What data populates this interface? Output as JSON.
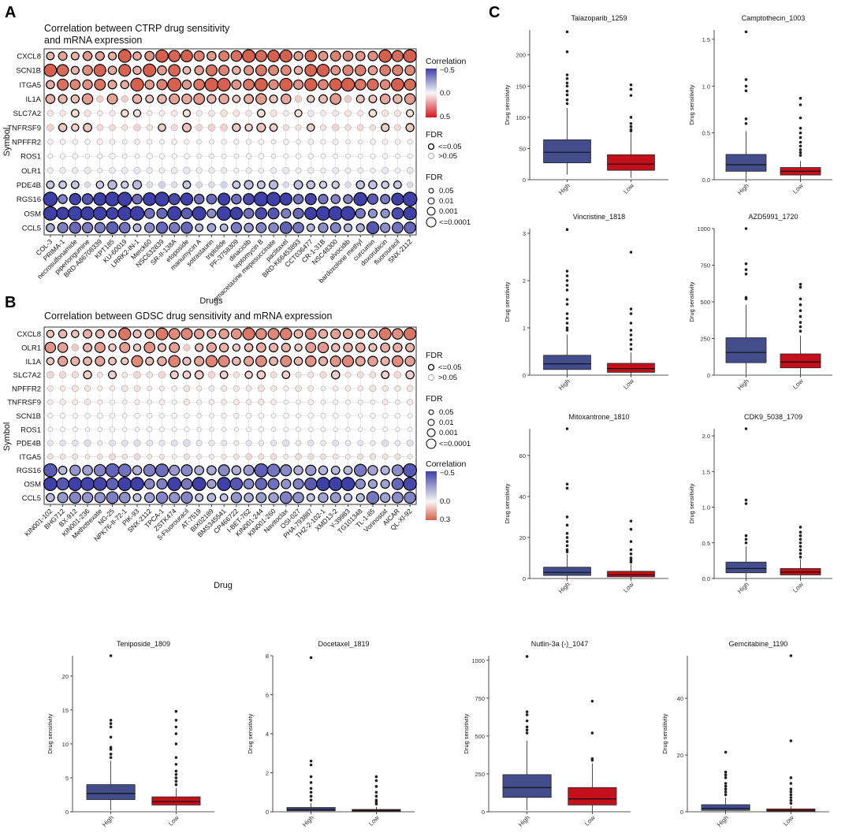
{
  "figure": {
    "panel_labels": {
      "A": "A",
      "B": "B",
      "C": "C"
    },
    "panel_a": {
      "title_line1": "Correlation between CTRP drug sensitivity",
      "title_line2": "and mRNA expression",
      "xlabel": "Drugs",
      "ylabel": "Symbol",
      "legend_corr_title": "Correlation",
      "legend_corr_ticks": [
        "−0.5",
        "0.0",
        "0.5"
      ],
      "legend_fdr_title": "FDR",
      "legend_fdr_items": [
        "<=0.05",
        ">0.05"
      ],
      "legend_size_title": "FDR",
      "legend_size_items": [
        "0.05",
        "0.01",
        "0.001",
        "<=0.0001"
      ]
    },
    "panel_b": {
      "title": "Correlation between GDSC drug sensitivity and mRNA expression",
      "xlabel": "Drug",
      "ylabel": "Symbol",
      "legend_fdr_title": "FDR",
      "legend_fdr_items": [
        "<=0.05",
        ">0.05"
      ],
      "legend_size_title": "FDR",
      "legend_size_items": [
        "0.05",
        "0.01",
        "0.001",
        "<=0.0001"
      ],
      "legend_corr_title": "Correlation",
      "legend_corr_ticks": [
        "−0.5",
        "0.0",
        "0.3"
      ]
    },
    "colors": {
      "high_box": "#434D8C",
      "low_box": "#C4101A",
      "neg_corr": "#3F3FA8",
      "pos_corr": "#D6604D",
      "neutral": "#F7F7F7",
      "grid": "#D9D9D9"
    }
  },
  "chart_data": [
    {
      "type": "bubble",
      "panel": "A",
      "rows": [
        "CXCL8",
        "SCN1B",
        "ITGA5",
        "IL1A",
        "SLC7A2",
        "TNFRSF9",
        "NPFFR2",
        "ROS1",
        "OLR1",
        "PDE4B",
        "RGS16",
        "OSM",
        "CCL5"
      ],
      "columns": [
        "COL-3",
        "PRIMA-1",
        "necrosulfonamide",
        "piperlongumine",
        "BRD-A86708339",
        "KPT185",
        "KU-60019",
        "LRRK2-IN-1",
        "Merck60",
        "NSC632839",
        "SR-II-138A",
        "etoposide",
        "manumycin A",
        "sotrastaurin",
        "triptolide",
        "PF-3758309",
        "dinaciclib",
        "leptomycin B",
        "omacetaxine mepesuccinate",
        "paclitaxel",
        "BRD-K66453893",
        "CCT036477",
        "CR-1-31B",
        "NSC48300",
        "alvocidib",
        "bardoxolone methyl",
        "curcumin",
        "doxorubicin",
        "fluorouracil",
        "SNX-2112"
      ],
      "row_mean_correlation": [
        0.4,
        0.38,
        0.42,
        0.22,
        0.06,
        0.12,
        0.02,
        0.01,
        -0.03,
        -0.12,
        -0.55,
        -0.48,
        -0.3
      ],
      "row_mean_size": [
        3,
        3,
        3.2,
        2.4,
        1.4,
        1.7,
        0.8,
        0.9,
        1.2,
        1.8,
        3.8,
        3.6,
        2.8
      ],
      "color_range": [
        -0.5,
        0.5
      ]
    },
    {
      "type": "bubble",
      "panel": "B",
      "rows": [
        "CXCL8",
        "OLR1",
        "IL1A",
        "SLC7A2",
        "NPFFR2",
        "TNFRSF9",
        "SCN1B",
        "ROS1",
        "PDE4B",
        "ITGA5",
        "RGS16",
        "OSM",
        "CCL5"
      ],
      "columns": [
        "KIN001-102",
        "BHG712",
        "BX-912",
        "KIN001-236",
        "Methotrexate",
        "NG-25",
        "NPK76-II-72-1",
        "PIK-93",
        "SNX-2112",
        "TPCA-1",
        "ZSTK474",
        "5-Fluorouracil",
        "AT-7519",
        "BIX02189",
        "BMS345541",
        "CP466722",
        "I-BET-762",
        "KIN001-244",
        "KIN001-260",
        "Navitoclax",
        "OSI-027",
        "PHA-793887",
        "THZ-2-102-1",
        "XMD13-2",
        "Y-39983",
        "TG101348",
        "TL-1-85",
        "Vorinostat",
        "AICAR",
        "QL-XI-92"
      ],
      "row_mean_correlation": [
        0.18,
        0.14,
        0.16,
        0.06,
        0.03,
        0.02,
        0.0,
        0.0,
        -0.05,
        0.04,
        -0.3,
        -0.4,
        -0.24
      ],
      "row_mean_size": [
        2.8,
        2.4,
        2.6,
        1.6,
        1.1,
        0.9,
        0.8,
        0.7,
        1.2,
        1.0,
        3.4,
        3.6,
        2.8
      ],
      "color_range": [
        -0.5,
        0.3
      ]
    },
    {
      "type": "boxplot",
      "title": "Talazoparib_1259",
      "ylabel": "Drug sensitivity",
      "categories": [
        "High",
        "Low"
      ],
      "ylim": [
        0,
        240
      ],
      "yticks": [
        0,
        50,
        100,
        150,
        200
      ],
      "high": {
        "q1": 27,
        "median": 44,
        "q3": 64,
        "min": 8,
        "max": 115,
        "outliers": [
          237,
          205,
          168,
          162,
          155,
          150,
          142,
          136,
          128,
          122
        ]
      },
      "low": {
        "q1": 15,
        "median": 25,
        "q3": 40,
        "min": 3,
        "max": 75,
        "outliers": [
          152,
          145,
          135,
          100,
          90,
          85,
          80,
          78
        ]
      }
    },
    {
      "type": "boxplot",
      "title": "Camptothecin_1003",
      "ylabel": "Drug sensitivity",
      "categories": [
        "High",
        "Low"
      ],
      "ylim": [
        0,
        1.6
      ],
      "yticks": [
        0.0,
        0.5,
        1.0,
        1.5
      ],
      "high": {
        "q1": 0.09,
        "median": 0.16,
        "q3": 0.27,
        "min": 0.01,
        "max": 0.52,
        "outliers": [
          1.58,
          1.07,
          1.0,
          0.95,
          0.65,
          0.6
        ]
      },
      "low": {
        "q1": 0.05,
        "median": 0.09,
        "q3": 0.13,
        "min": 0.0,
        "max": 0.2,
        "outliers": [
          0.87,
          0.8,
          0.66,
          0.55,
          0.5,
          0.45,
          0.4,
          0.36,
          0.32,
          0.29,
          0.26
        ]
      }
    },
    {
      "type": "boxplot",
      "title": "Vincristine_1818",
      "ylabel": "Drug sensitivity",
      "categories": [
        "High",
        "Low"
      ],
      "ylim": [
        0,
        3.1
      ],
      "yticks": [
        0,
        1,
        2,
        3
      ],
      "high": {
        "q1": 0.12,
        "median": 0.24,
        "q3": 0.42,
        "min": 0.0,
        "max": 0.86,
        "outliers": [
          3.08,
          2.2,
          2.1,
          2.0,
          1.9,
          1.8,
          1.6,
          1.5,
          1.3,
          1.2,
          1.1,
          1.0,
          0.95
        ]
      },
      "low": {
        "q1": 0.06,
        "median": 0.14,
        "q3": 0.25,
        "min": 0.0,
        "max": 0.48,
        "outliers": [
          2.6,
          1.4,
          1.3,
          1.1,
          0.95,
          0.85,
          0.75,
          0.65,
          0.55
        ]
      }
    },
    {
      "type": "boxplot",
      "title": "AZD5991_1720",
      "ylabel": "Drug sensitivity",
      "categories": [
        "High",
        "Low"
      ],
      "ylim": [
        0,
        1000
      ],
      "yticks": [
        0,
        250,
        500,
        750,
        1000
      ],
      "high": {
        "q1": 85,
        "median": 155,
        "q3": 255,
        "min": 5,
        "max": 480,
        "outliers": [
          1000,
          760,
          720,
          690,
          530,
          520
        ]
      },
      "low": {
        "q1": 50,
        "median": 90,
        "q3": 145,
        "min": 2,
        "max": 270,
        "outliers": [
          620,
          600,
          520,
          480,
          440,
          400,
          360,
          330,
          300
        ]
      }
    },
    {
      "type": "boxplot",
      "title": "Mitoxantrone_1810",
      "ylabel": "Drug sensitivity",
      "categories": [
        "High",
        "Low"
      ],
      "ylim": [
        0,
        73
      ],
      "yticks": [
        0,
        20,
        40,
        60
      ],
      "high": {
        "q1": 1.5,
        "median": 3,
        "q3": 5.5,
        "min": 0,
        "max": 12,
        "outliers": [
          73,
          46,
          44,
          30,
          26,
          22,
          20,
          18,
          16,
          14,
          13
        ]
      },
      "low": {
        "q1": 0.8,
        "median": 1.8,
        "q3": 3.5,
        "min": 0,
        "max": 7,
        "outliers": [
          28,
          24,
          18,
          14,
          12,
          10,
          9,
          8
        ]
      }
    },
    {
      "type": "boxplot",
      "title": "CDK9_5038_1709",
      "ylabel": "Drug sensitivity",
      "categories": [
        "High",
        "Low"
      ],
      "ylim": [
        0,
        2.1
      ],
      "yticks": [
        0.0,
        0.5,
        1.0,
        1.5,
        2.0
      ],
      "high": {
        "q1": 0.08,
        "median": 0.14,
        "q3": 0.23,
        "min": 0.0,
        "max": 0.45,
        "outliers": [
          2.1,
          1.1,
          1.05,
          0.6,
          0.55,
          0.5
        ]
      },
      "low": {
        "q1": 0.05,
        "median": 0.09,
        "q3": 0.14,
        "min": 0.0,
        "max": 0.27,
        "outliers": [
          0.72,
          0.65,
          0.6,
          0.55,
          0.5,
          0.45,
          0.4,
          0.35,
          0.3
        ]
      }
    },
    {
      "type": "boxplot",
      "title": "Teniposide_1809",
      "ylabel": "Drug sensitivity",
      "categories": [
        "High",
        "Low"
      ],
      "ylim": [
        0,
        23
      ],
      "yticks": [
        0,
        5,
        10,
        15,
        20
      ],
      "high": {
        "q1": 1.8,
        "median": 2.7,
        "q3": 4.0,
        "min": 0.2,
        "max": 7.5,
        "outliers": [
          23,
          13.5,
          13.0,
          12.5,
          11,
          9.5,
          9.2,
          8.5,
          8
        ]
      },
      "low": {
        "q1": 1.0,
        "median": 1.5,
        "q3": 2.2,
        "min": 0.1,
        "max": 3.5,
        "outliers": [
          14.8,
          13.5,
          12.5,
          11.5,
          10,
          8,
          7,
          6,
          5.5,
          5,
          4.5,
          4
        ]
      }
    },
    {
      "type": "boxplot",
      "title": "Docetaxel_1819",
      "ylabel": "Drug sensitivity",
      "categories": [
        "High",
        "Low"
      ],
      "ylim": [
        0,
        8
      ],
      "yticks": [
        0,
        2,
        4,
        6,
        8
      ],
      "high": {
        "q1": 0.05,
        "median": 0.12,
        "q3": 0.22,
        "min": 0.0,
        "max": 0.45,
        "outliers": [
          7.9,
          2.6,
          2.4,
          1.8,
          1.5,
          1.2,
          1.0,
          0.8,
          0.6
        ]
      },
      "low": {
        "q1": 0.03,
        "median": 0.07,
        "q3": 0.12,
        "min": 0.0,
        "max": 0.25,
        "outliers": [
          1.8,
          1.6,
          1.3,
          1.0,
          0.8,
          0.6,
          0.5,
          0.4
        ]
      }
    },
    {
      "type": "boxplot",
      "title": "Nutlin-3a (-)_1047",
      "ylabel": "Drug sensitivity",
      "categories": [
        "High",
        "Low"
      ],
      "ylim": [
        0,
        1030
      ],
      "yticks": [
        0,
        250,
        500,
        750,
        1000
      ],
      "high": {
        "q1": 95,
        "median": 160,
        "q3": 245,
        "min": 10,
        "max": 470,
        "outliers": [
          1025,
          660,
          640,
          600,
          560,
          540,
          520
        ]
      },
      "low": {
        "q1": 45,
        "median": 85,
        "q3": 160,
        "min": 3,
        "max": 320,
        "outliers": [
          730,
          520,
          350,
          340
        ]
      }
    },
    {
      "type": "boxplot",
      "title": "Gemcitabine_1190",
      "ylabel": "Drug sensitivity",
      "categories": [
        "High",
        "Low"
      ],
      "ylim": [
        0,
        55
      ],
      "yticks": [
        0,
        20,
        40
      ],
      "high": {
        "q1": 0.5,
        "median": 1.2,
        "q3": 2.5,
        "min": 0,
        "max": 5,
        "outliers": [
          21,
          14,
          13,
          12,
          10,
          9,
          8,
          7,
          6
        ]
      },
      "low": {
        "q1": 0.2,
        "median": 0.5,
        "q3": 1.0,
        "min": 0,
        "max": 2,
        "outliers": [
          55,
          25,
          12,
          10,
          8,
          7,
          6,
          5,
          4,
          3
        ]
      }
    }
  ]
}
